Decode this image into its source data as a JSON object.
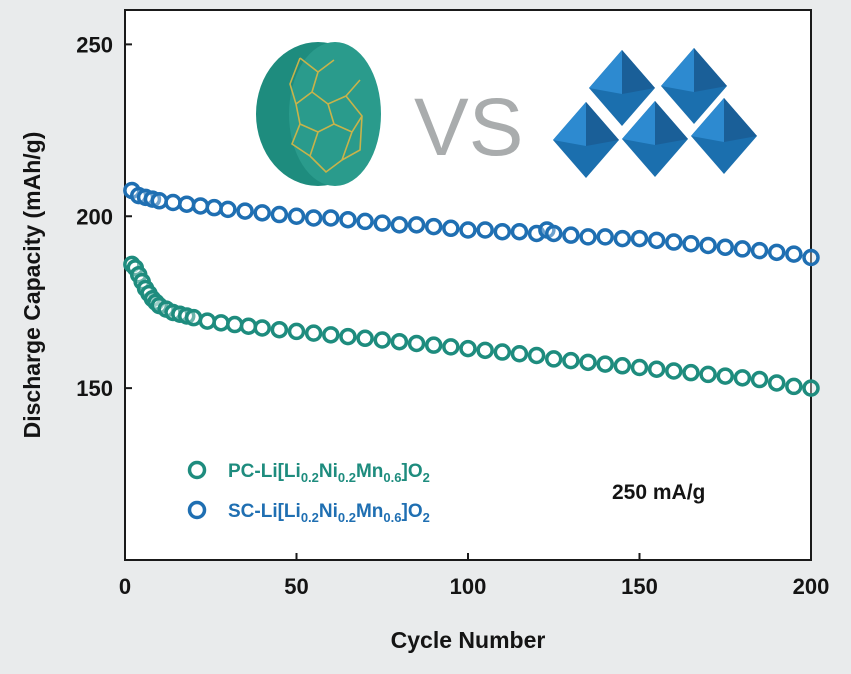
{
  "chart_data": {
    "type": "scatter",
    "title": "",
    "xlabel": "Cycle Number",
    "ylabel": "Discharge Capacity (mAh/g)",
    "xlim": [
      0,
      200
    ],
    "ylim": [
      100,
      260
    ],
    "xticks": [
      0,
      50,
      100,
      150,
      200
    ],
    "yticks": [
      150,
      200,
      250
    ],
    "grid": false,
    "legend_position": "bottom-left",
    "annotation": "250 mA/g",
    "inset_text": "VS",
    "series": [
      {
        "name_prefix": "PC-Li[Li",
        "name_parts": [
          "0.2",
          "Ni",
          "0.2",
          "Mn",
          "0.6",
          "]O",
          "2"
        ],
        "color": "#1e8c7e",
        "x": [
          2,
          3,
          4,
          5,
          6,
          7,
          8,
          9,
          10,
          12,
          14,
          16,
          18,
          20,
          24,
          28,
          32,
          36,
          40,
          45,
          50,
          55,
          60,
          65,
          70,
          75,
          80,
          85,
          90,
          95,
          100,
          105,
          110,
          115,
          120,
          125,
          130,
          135,
          140,
          145,
          150,
          155,
          160,
          165,
          170,
          175,
          180,
          185,
          190,
          195,
          200
        ],
        "y": [
          186,
          185,
          183,
          181,
          179,
          177.5,
          176,
          175,
          174,
          173,
          172,
          171.5,
          171,
          170.5,
          169.5,
          169,
          168.5,
          168,
          167.5,
          167,
          166.5,
          166,
          165.5,
          165,
          164.5,
          164,
          163.5,
          163,
          162.5,
          162,
          161.5,
          161,
          160.5,
          160,
          159.5,
          158.5,
          158,
          157.5,
          157,
          156.5,
          156,
          155.5,
          155,
          154.5,
          154,
          153.5,
          153,
          152.5,
          151.5,
          150.5,
          150
        ]
      },
      {
        "name_prefix": "SC-Li[Li",
        "name_parts": [
          "0.2",
          "Ni",
          "0.2",
          "Mn",
          "0.6",
          "]O",
          "2"
        ],
        "color": "#1f6fb2",
        "x": [
          2,
          4,
          6,
          8,
          10,
          14,
          18,
          22,
          26,
          30,
          35,
          40,
          45,
          50,
          55,
          60,
          65,
          70,
          75,
          80,
          85,
          90,
          95,
          100,
          105,
          110,
          115,
          120,
          123,
          125,
          130,
          135,
          140,
          145,
          150,
          155,
          160,
          165,
          170,
          175,
          180,
          185,
          190,
          195,
          200
        ],
        "y": [
          207.5,
          206,
          205.5,
          205,
          204.5,
          204,
          203.5,
          203,
          202.5,
          202,
          201.5,
          201,
          200.5,
          200,
          199.5,
          199.5,
          199,
          198.5,
          198,
          197.5,
          197.5,
          197,
          196.5,
          196,
          196,
          195.5,
          195.5,
          195,
          196,
          195,
          194.5,
          194,
          194,
          193.5,
          193.5,
          193,
          192.5,
          192,
          191.5,
          191,
          190.5,
          190,
          189.5,
          189,
          188
        ]
      }
    ]
  }
}
